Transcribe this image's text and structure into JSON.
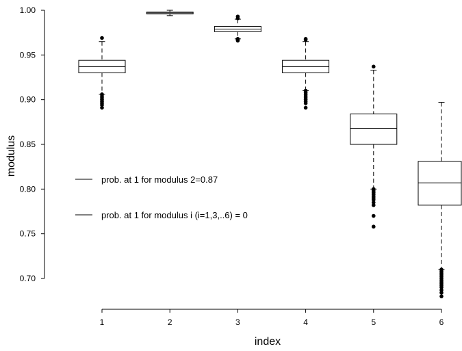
{
  "chart_data": {
    "type": "boxplot",
    "xlabel": "index",
    "ylabel": "modulus",
    "ylim": [
      0.67,
      1.0
    ],
    "yticks": [
      "0.70",
      "0.75",
      "0.80",
      "0.85",
      "0.90",
      "0.95",
      "1.00"
    ],
    "categories": [
      "1",
      "2",
      "3",
      "4",
      "5",
      "6"
    ],
    "boxes": [
      {
        "category": "1",
        "whisker_low": 0.906,
        "q1": 0.93,
        "median": 0.937,
        "q3": 0.944,
        "whisker_high": 0.965,
        "outliers": [
          0.969,
          0.906,
          0.904,
          0.902,
          0.9,
          0.898,
          0.896,
          0.894,
          0.891
        ]
      },
      {
        "category": "2",
        "whisker_low": 0.994,
        "q1": 0.996,
        "median": 0.997,
        "q3": 0.998,
        "whisker_high": 1.0,
        "outliers": []
      },
      {
        "category": "3",
        "whisker_low": 0.968,
        "q1": 0.976,
        "median": 0.979,
        "q3": 0.982,
        "whisker_high": 0.99,
        "outliers": [
          0.993,
          0.991,
          0.968,
          0.967,
          0.966
        ]
      },
      {
        "category": "4",
        "whisker_low": 0.91,
        "q1": 0.93,
        "median": 0.937,
        "q3": 0.944,
        "whisker_high": 0.965,
        "outliers": [
          0.968,
          0.967,
          0.91,
          0.908,
          0.906,
          0.904,
          0.902,
          0.9,
          0.898,
          0.896,
          0.891
        ]
      },
      {
        "category": "5",
        "whisker_low": 0.8,
        "q1": 0.85,
        "median": 0.868,
        "q3": 0.884,
        "whisker_high": 0.933,
        "outliers": [
          0.937,
          0.8,
          0.798,
          0.796,
          0.794,
          0.792,
          0.79,
          0.788,
          0.785,
          0.782,
          0.77,
          0.758
        ]
      },
      {
        "category": "6",
        "whisker_low": 0.71,
        "q1": 0.782,
        "median": 0.807,
        "q3": 0.831,
        "whisker_high": 0.897,
        "outliers": [
          0.71,
          0.708,
          0.706,
          0.704,
          0.702,
          0.7,
          0.698,
          0.696,
          0.694,
          0.692,
          0.69,
          0.687,
          0.684,
          0.68
        ]
      }
    ],
    "legend": [
      "prob. at 1 for modulus 2=0.87",
      "prob. at 1 for modulus i (i=1,3,..6) = 0"
    ],
    "legend_position": "left-middle"
  }
}
